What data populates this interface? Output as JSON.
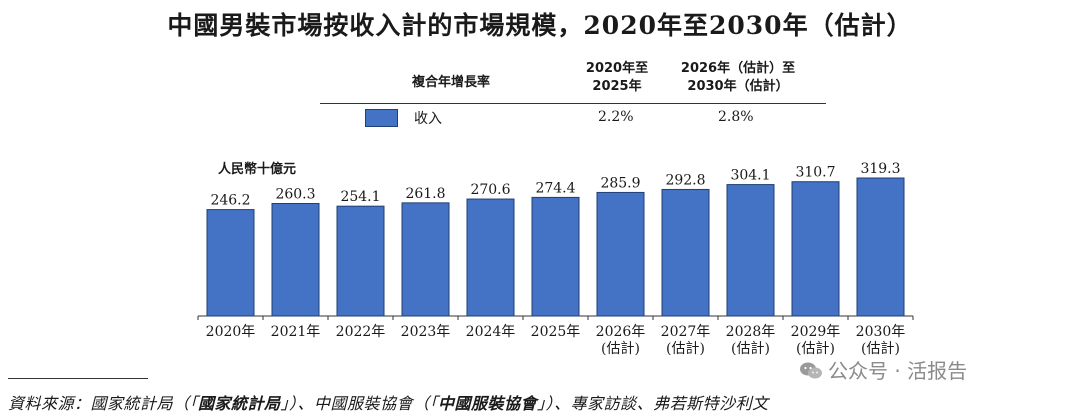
{
  "title": {
    "prefix": "中國男裝市場按收入計的市場規模，",
    "range": "2020年至2030年",
    "suffix": "（估計）"
  },
  "cagr_table": {
    "row_header": "複合年增長率",
    "col1_header_line1": "2020年至",
    "col1_header_line2": "2025年",
    "col2_header_line1": "2026年（估計）至",
    "col2_header_line2": "2030年（估計）",
    "legend_label": "收入",
    "col1_value": "2.2%",
    "col2_value": "2.8%"
  },
  "unit_label": "人民幣十億元",
  "colors": {
    "bar": "#4472c4",
    "bar_border": "#1f3f75"
  },
  "chart_data": {
    "type": "bar",
    "title": "中國男裝市場按收入計的市場規模，2020年至2030年（估計）",
    "ylabel": "人民幣十億元",
    "categories": [
      "2020年",
      "2021年",
      "2022年",
      "2023年",
      "2024年",
      "2025年",
      "2026年\n(估計)",
      "2027年\n(估計)",
      "2028年\n(估計)",
      "2029年\n(估計)",
      "2030年\n(估計)"
    ],
    "series": [
      {
        "name": "收入",
        "values": [
          246.2,
          260.3,
          254.1,
          261.8,
          270.6,
          274.4,
          285.9,
          292.8,
          304.1,
          310.7,
          319.3
        ]
      }
    ],
    "value_labels": [
      "246.2",
      "260.3",
      "254.1",
      "261.8",
      "270.6",
      "274.4",
      "285.9",
      "292.8",
      "304.1",
      "310.7",
      "319.3"
    ],
    "ylim": [
      0,
      319.3
    ],
    "grid": false,
    "legend": "top"
  },
  "source": {
    "prefix": "資料來源：國家統計局（「",
    "bold1": "國家統計局",
    "mid": "」）、中國服裝協會（「",
    "bold2": "中國服裝協會",
    "suffix": "」）、專家訪談、弗若斯特沙利文"
  },
  "watermark": "公众号 · 活报告"
}
